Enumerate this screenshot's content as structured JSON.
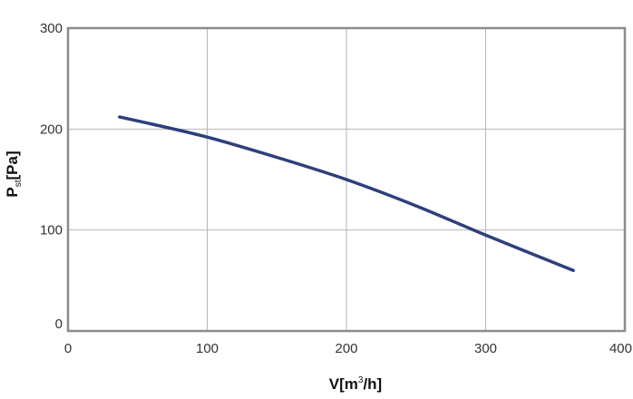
{
  "chart_data": {
    "type": "line",
    "title": "",
    "xlabel": {
      "main": "V[m",
      "sup": "3",
      "tail": "/h]"
    },
    "ylabel": {
      "main": "P",
      "sub": "st",
      "tail": "[Pa]"
    },
    "xlim": [
      0,
      400
    ],
    "ylim": [
      0,
      300
    ],
    "x_ticks": [
      "0",
      "100",
      "200",
      "300",
      "400"
    ],
    "y_ticks": [
      "0",
      "100",
      "200",
      "300"
    ],
    "grid": true,
    "line_color": "#2e3f7c",
    "series": [
      {
        "x": [
          37,
          60,
          100,
          150,
          200,
          250,
          300,
          363
        ],
        "y": [
          212,
          205,
          192,
          172,
          150,
          124,
          95,
          60
        ]
      }
    ]
  }
}
